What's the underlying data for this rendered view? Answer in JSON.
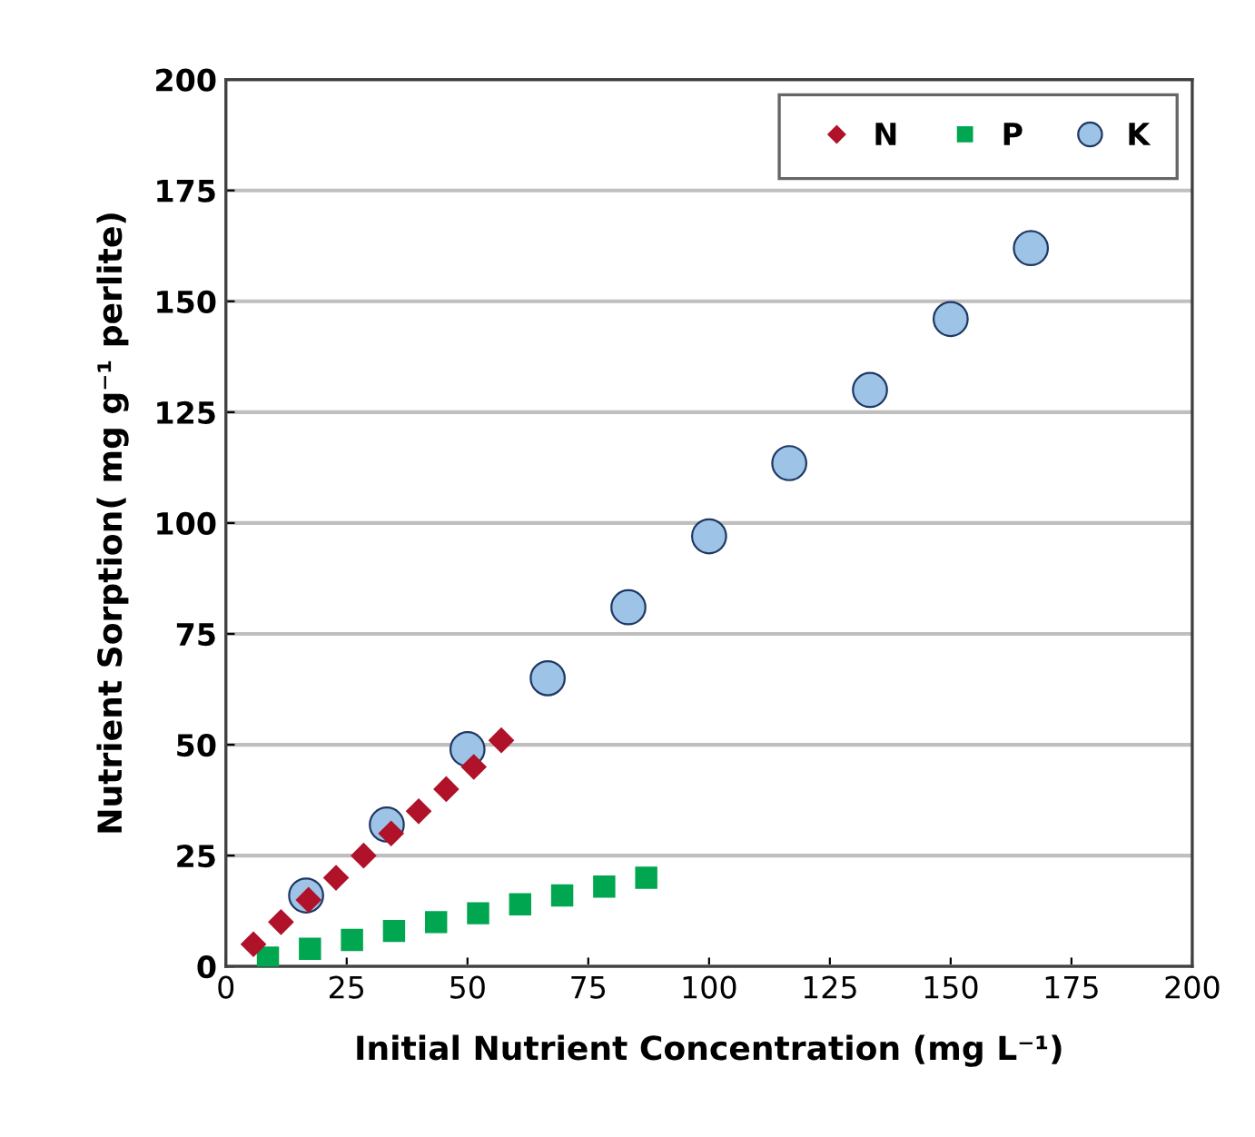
{
  "chart_data": {
    "type": "scatter",
    "xlabel": "Initial Nutrient Concentration (mg L⁻¹)",
    "ylabel": "Nutrient Sorption( mg g⁻¹ perlite)",
    "xlim": [
      0,
      200
    ],
    "xticks": [
      0,
      25,
      50,
      75,
      100,
      125,
      150,
      175,
      200
    ],
    "ylim": [
      0,
      200
    ],
    "yticks": [
      0,
      25,
      50,
      75,
      100,
      125,
      150,
      175,
      200
    ],
    "grid": "y",
    "legend": "top right",
    "series": [
      {
        "name": "N",
        "color": "#b0122a",
        "marker": "diamond",
        "x": [
          5.7,
          11.4,
          17.1,
          22.8,
          28.5,
          34.2,
          39.9,
          45.6,
          51.3,
          57
        ],
        "values": [
          5,
          10,
          15,
          20,
          25,
          30,
          35,
          40,
          45,
          51
        ]
      },
      {
        "name": "P",
        "color": "#00a650",
        "marker": "square",
        "x": [
          8.7,
          17.4,
          26.1,
          34.8,
          43.5,
          52.2,
          60.9,
          69.6,
          78.3,
          87
        ],
        "values": [
          2,
          4,
          6,
          8,
          10,
          12,
          14,
          16,
          18,
          20
        ]
      },
      {
        "name": "K",
        "color": "#9dc3e6",
        "marker": "circle",
        "x": [
          16.6,
          33.3,
          50,
          66.6,
          83.3,
          100,
          116.6,
          133.3,
          150,
          166.6
        ],
        "values": [
          16,
          32,
          49,
          65,
          81,
          97,
          113.5,
          130,
          146,
          162
        ]
      }
    ]
  }
}
